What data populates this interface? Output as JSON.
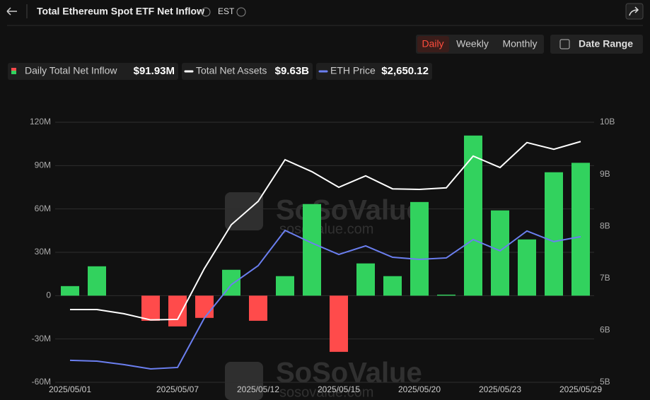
{
  "ui": {
    "title": "Total Ethereum Spot ETF Net Inflow",
    "timezone": "EST",
    "buttons": [
      "Daily",
      "Weekly",
      "Monthly"
    ],
    "date_range": "Date Range",
    "watermark": "SoSoValue",
    "watermark_url": "sosovalue.com"
  },
  "chart_data": {
    "type": "bar",
    "categories": [
      "2025/05/01",
      null,
      null,
      null,
      "2025/05/07",
      null,
      null,
      "2025/05/12",
      null,
      null,
      "2025/05/15",
      null,
      null,
      "2025/05/20",
      null,
      null,
      "2025/05/23",
      null,
      null,
      "2025/05/29"
    ],
    "series": [
      {
        "name": "Daily Total Net Inflow",
        "current": "$91.93M",
        "type": "bar",
        "positive_color": "#32d25e",
        "negative_color": "#ff4b4b",
        "values": [
          6.6,
          20.3,
          0,
          -17.4,
          -21.3,
          -15.4,
          17.9,
          -17.4,
          13.5,
          63.4,
          -38.9,
          22.3,
          13.5,
          64.8,
          0.7,
          110.8,
          59,
          38.9,
          85.4,
          91.93
        ]
      },
      {
        "name": "Total Net Assets",
        "current": "$9.63B",
        "type": "line",
        "axis": "y2",
        "color": "#ffffff",
        "values": [
          6.4,
          6.4,
          6.32,
          6.2,
          6.21,
          7.19,
          8.03,
          8.48,
          9.28,
          9.05,
          8.75,
          8.97,
          8.72,
          8.71,
          8.74,
          9.35,
          9.13,
          9.61,
          9.48,
          9.63
        ]
      },
      {
        "name": "ETH Price",
        "current": "$2,650.12",
        "type": "line",
        "axis": "y3",
        "color": "#6b7ff0",
        "values": [
          1869,
          1864,
          1842,
          1815,
          1824,
          2137,
          2347,
          2467,
          2690,
          2610,
          2538,
          2592,
          2520,
          2507,
          2516,
          2632,
          2561,
          2686,
          2619,
          2650.12
        ]
      }
    ],
    "ylim": [
      -60,
      120
    ],
    "yticks": [
      {
        "value": -60,
        "label": "-60M"
      },
      {
        "value": -30,
        "label": "-30M"
      },
      0,
      {
        "value": 30,
        "label": "30M"
      },
      {
        "value": 60,
        "label": "60M"
      },
      {
        "value": 90,
        "label": "90M"
      },
      {
        "value": 120,
        "label": "120M"
      }
    ],
    "y2lim": [
      5,
      10
    ],
    "y2ticks": [
      {
        "value": 5,
        "label": "5B"
      },
      {
        "value": 6,
        "label": "6B"
      },
      {
        "value": 7,
        "label": "7B"
      },
      {
        "value": 8,
        "label": "8B"
      },
      {
        "value": 9,
        "label": "9B"
      },
      {
        "value": 10,
        "label": "10B"
      }
    ],
    "y3lim": [
      1730,
      3373
    ],
    "grid": true
  }
}
